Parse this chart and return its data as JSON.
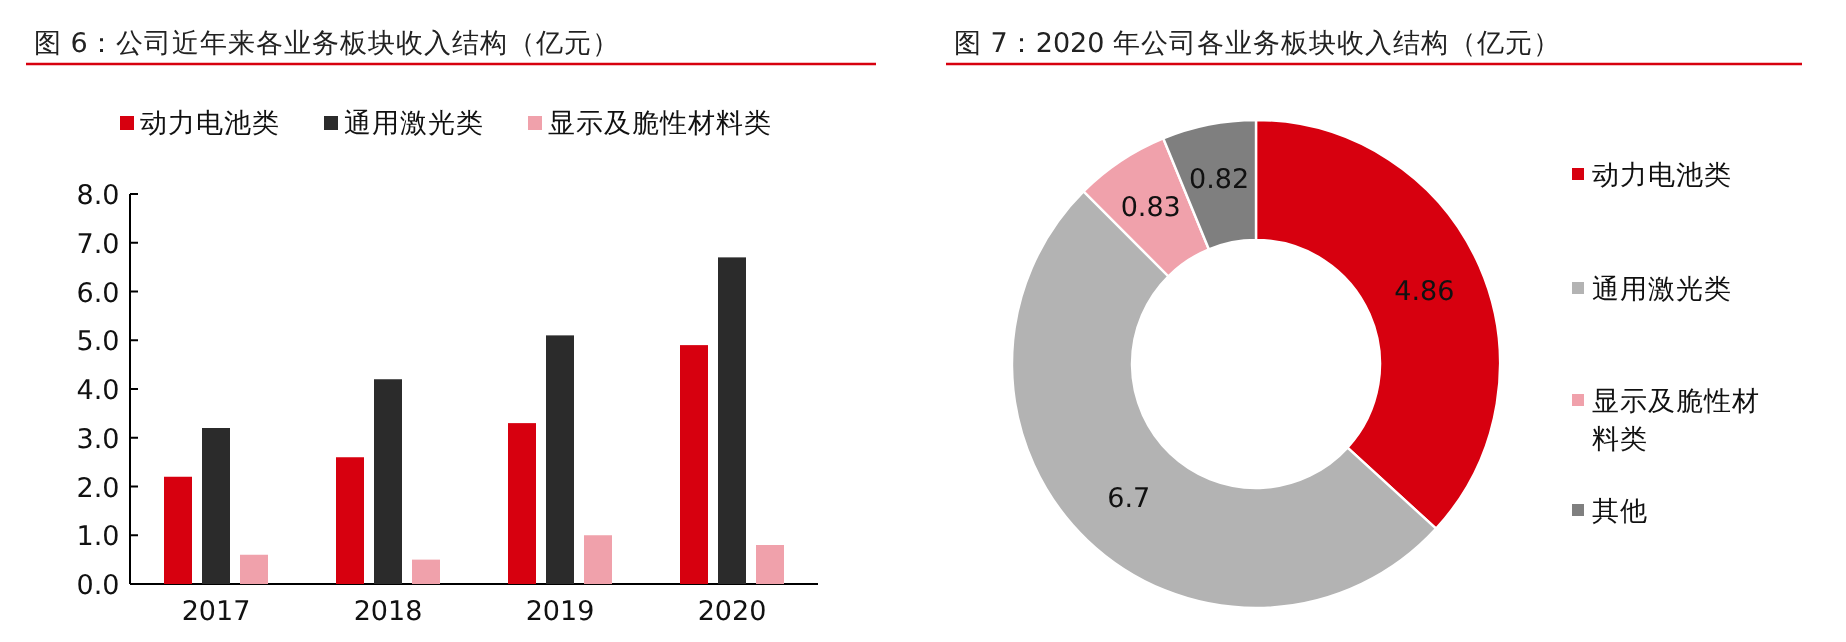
{
  "chart_data": [
    {
      "type": "bar",
      "title": "图 6：公司近年来各业务板块收入结构（亿元）",
      "categories": [
        "2017",
        "2018",
        "2019",
        "2020"
      ],
      "series": [
        {
          "name": "动力电池类",
          "color": "#d7000f",
          "values": [
            2.2,
            2.6,
            3.3,
            4.9
          ]
        },
        {
          "name": "通用激光类",
          "color": "#2b2b2b",
          "values": [
            3.2,
            4.2,
            5.1,
            6.7
          ]
        },
        {
          "name": "显示及脆性材料类",
          "color": "#f0a1ab",
          "values": [
            0.6,
            0.5,
            1.0,
            0.8
          ]
        }
      ],
      "ylim": [
        0,
        8
      ],
      "yticks": [
        {
          "value": 0,
          "label": "0.0"
        },
        {
          "value": 1,
          "label": "1.0"
        },
        {
          "value": 2,
          "label": "2.0"
        },
        {
          "value": 3,
          "label": "3.0"
        },
        {
          "value": 4,
          "label": "4.0"
        },
        {
          "value": 5,
          "label": "5.0"
        },
        {
          "value": 6,
          "label": "6.0"
        },
        {
          "value": 7,
          "label": "7.0"
        },
        {
          "value": 8,
          "label": "8.0"
        }
      ],
      "legend": "top"
    },
    {
      "type": "donut",
      "title": "图 7：2020 年公司各业务板块收入结构（亿元）",
      "categories": [
        "动力电池类",
        "通用激光类",
        "显示及脆性材料类",
        "其他"
      ],
      "values": [
        4.86,
        6.7,
        0.83,
        0.82
      ],
      "colors": [
        "#d7000f",
        "#b3b3b3",
        "#f0a1ab",
        "#7f7f7f"
      ],
      "data_labels": true,
      "legend": "right"
    }
  ]
}
